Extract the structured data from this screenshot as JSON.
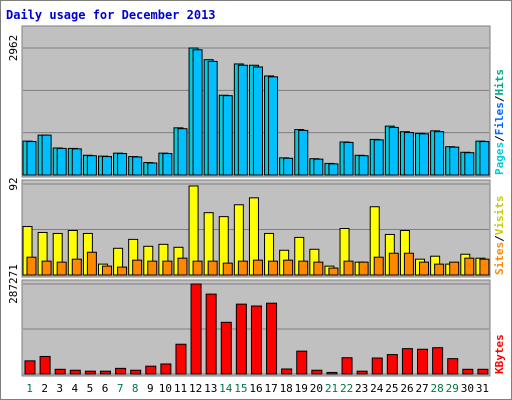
{
  "chart_data": {
    "type": "bar",
    "title": "Daily usage for December 2013",
    "colors": {
      "background": "#c0c0c0",
      "frame": "#7f7f7f",
      "gridline": "#7f7f7f",
      "bar_edge": "#000000",
      "hits": "#00ccdd",
      "files": "#00bfff",
      "pages": "#55ffff",
      "visits": "#ffff00",
      "sites": "#ff8800",
      "kbytes": "#ff0000",
      "weekday_label": "#000000",
      "weekend_label": "#007744"
    },
    "days": [
      "1",
      "2",
      "3",
      "4",
      "5",
      "6",
      "7",
      "8",
      "9",
      "10",
      "11",
      "12",
      "13",
      "14",
      "15",
      "16",
      "17",
      "18",
      "19",
      "20",
      "21",
      "22",
      "23",
      "24",
      "25",
      "26",
      "27",
      "28",
      "29",
      "30",
      "31"
    ],
    "weekend_days": [
      "1",
      "7",
      "8",
      "14",
      "15",
      "21",
      "22",
      "28",
      "29"
    ],
    "panels": [
      {
        "id": "hits-files-pages",
        "y_max_label": "2962",
        "y_max": 2962,
        "legend": [
          {
            "text": "Pages",
            "color": "#00ccdd"
          },
          {
            "text": "/",
            "color": "#000000"
          },
          {
            "text": "Files",
            "color": "#0066ff"
          },
          {
            "text": "/",
            "color": "#000000"
          },
          {
            "text": "Hits",
            "color": "#00aa88"
          }
        ],
        "series": [
          {
            "name": "Hits",
            "color": "#00ccdd",
            "values": [
              790,
              930,
              630,
              620,
              460,
              440,
              510,
              430,
              290,
              510,
              1100,
              2962,
              2690,
              1860,
              2590,
              2560,
              2310,
              400,
              1060,
              380,
              270,
              770,
              460,
              830,
              1140,
              1010,
              970,
              1030,
              660,
              530,
              790
            ]
          },
          {
            "name": "Files",
            "color": "#00bfff",
            "values": [
              780,
              930,
              620,
              610,
              450,
              430,
              500,
              420,
              280,
              500,
              1080,
              2920,
              2650,
              1850,
              2560,
              2520,
              2290,
              390,
              1040,
              370,
              260,
              760,
              450,
              820,
              1110,
              990,
              960,
              1010,
              650,
              520,
              780
            ]
          }
        ]
      },
      {
        "id": "visits-sites",
        "y_max_label": "92",
        "y_max": 92,
        "legend": [
          {
            "text": "Sites",
            "color": "#ff8800"
          },
          {
            "text": "/",
            "color": "#000000"
          },
          {
            "text": "Visits",
            "color": "#cccc00"
          }
        ],
        "series": [
          {
            "name": "Visits",
            "color": "#ffff00",
            "values": [
              49,
              43,
              42,
              45,
              42,
              11,
              27,
              36,
              29,
              31,
              28,
              90,
              63,
              59,
              71,
              78,
              42,
              25,
              38,
              26,
              9,
              47,
              13,
              69,
              41,
              45,
              16,
              19,
              11,
              21,
              17
            ]
          },
          {
            "name": "Sites",
            "color": "#ff8800",
            "values": [
              18,
              14,
              13,
              16,
              23,
              9,
              8,
              15,
              14,
              14,
              17,
              14,
              14,
              12,
              14,
              15,
              14,
              15,
              14,
              13,
              7,
              14,
              13,
              18,
              22,
              22,
              13,
              11,
              13,
              17,
              16
            ]
          }
        ]
      },
      {
        "id": "kbytes",
        "y_max_label": "287271",
        "y_max": 287271,
        "legend": [
          {
            "text": "KBytes",
            "color": "#ff0000"
          }
        ],
        "series": [
          {
            "name": "KBytes",
            "color": "#ff0000",
            "values": [
              42000,
              56000,
              15000,
              12000,
              9000,
              9000,
              18000,
              12000,
              25000,
              32000,
              95000,
              287271,
              255000,
              165000,
              223000,
              217000,
              226000,
              16000,
              73000,
              12000,
              5000,
              52000,
              9000,
              51000,
              62000,
              81000,
              79000,
              84000,
              49000,
              15000,
              15000
            ]
          }
        ]
      }
    ]
  }
}
